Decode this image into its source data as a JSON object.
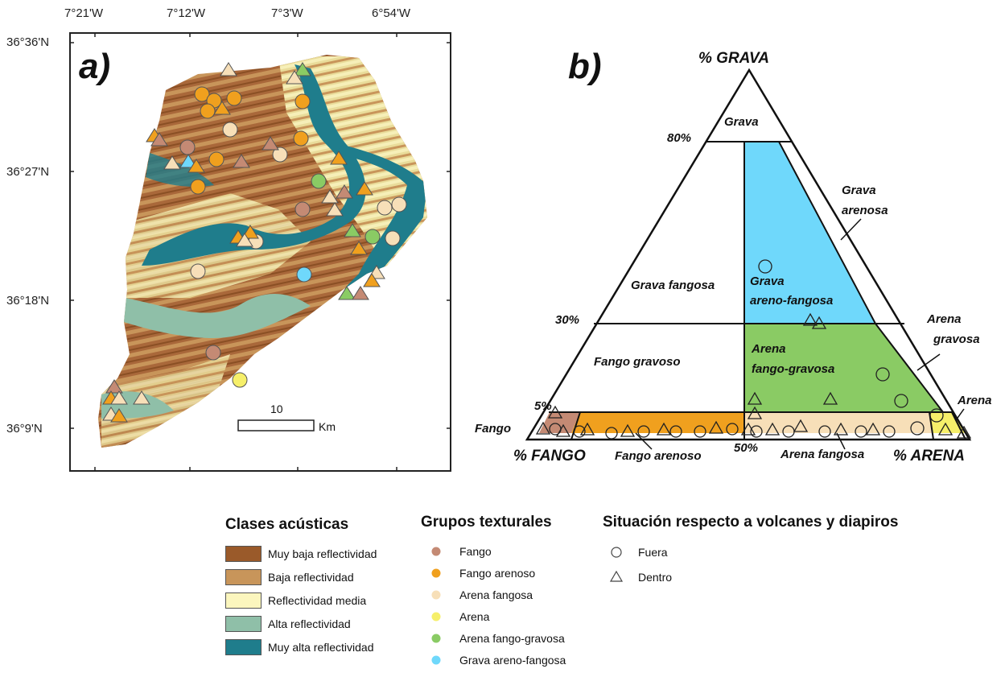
{
  "panel_a": {
    "label": "a)",
    "lon_ticks": [
      "7°21'W",
      "7°12'W",
      "7°3'W",
      "6°54'W"
    ],
    "lat_ticks": [
      "36°36'N",
      "36°27'N",
      "36°18'N",
      "36°9'N"
    ],
    "scale": {
      "value": "10",
      "unit": "Km"
    }
  },
  "panel_b": {
    "label": "b)",
    "vertices": {
      "top": "% GRAVA",
      "left": "% FANGO",
      "right": "% ARENA"
    },
    "percent_labels": {
      "p80": "80%",
      "p30": "30%",
      "p5": "5%",
      "p50": "50%"
    },
    "regions": {
      "grava": "Grava",
      "grava_arenosa_1": "Grava",
      "grava_arenosa_2": "arenosa",
      "grava_fangosa": "Grava fangosa",
      "grava_areno_fangosa_1": "Grava",
      "grava_areno_fangosa_2": "areno-fangosa",
      "fango_gravoso": "Fango gravoso",
      "arena_fango_gravosa_1": "Arena",
      "arena_fango_gravosa_2": "fango-gravosa",
      "arena_gravosa_1": "Arena",
      "arena_gravosa_2": "gravosa",
      "arena": "Arena",
      "fango": "Fango",
      "fango_arenoso": "Fango arenoso",
      "arena_fangosa": "Arena fangosa"
    },
    "colors": {
      "grava_areno_fangosa": "#6fd8fb",
      "arena_fango_gravosa": "#8acb64",
      "fango": "#c48a74",
      "fango_arenoso": "#f0a01e",
      "arena_fangosa": "#f7dfb8",
      "arena": "#f6ef6a"
    }
  },
  "legend": {
    "acoustic": {
      "title": "Clases acústicas",
      "items": [
        {
          "label": "Muy baja reflectividad",
          "color": "#9a5a2a"
        },
        {
          "label": "Baja reflectividad",
          "color": "#c8955a"
        },
        {
          "label": "Reflectividad media",
          "color": "#fbf6be"
        },
        {
          "label": "Alta reflectividad",
          "color": "#8fbfa8"
        },
        {
          "label": "Muy alta reflectividad",
          "color": "#1f7d8c"
        }
      ]
    },
    "textural": {
      "title": "Grupos texturales",
      "items": [
        {
          "label": "Fango",
          "color": "#c48a74"
        },
        {
          "label": "Fango arenoso",
          "color": "#f0a01e"
        },
        {
          "label": "Arena fangosa",
          "color": "#f7dfb8"
        },
        {
          "label": "Arena",
          "color": "#f6ef6a"
        },
        {
          "label": "Arena fango-gravosa",
          "color": "#8acb64"
        },
        {
          "label": "Grava areno-fangosa",
          "color": "#6fd8fb"
        }
      ]
    },
    "situation": {
      "title": "Situación respecto a volcanes y diapiros",
      "items": [
        {
          "label": "Fuera",
          "symbol": "circle"
        },
        {
          "label": "Dentro",
          "symbol": "triangle"
        }
      ]
    }
  }
}
